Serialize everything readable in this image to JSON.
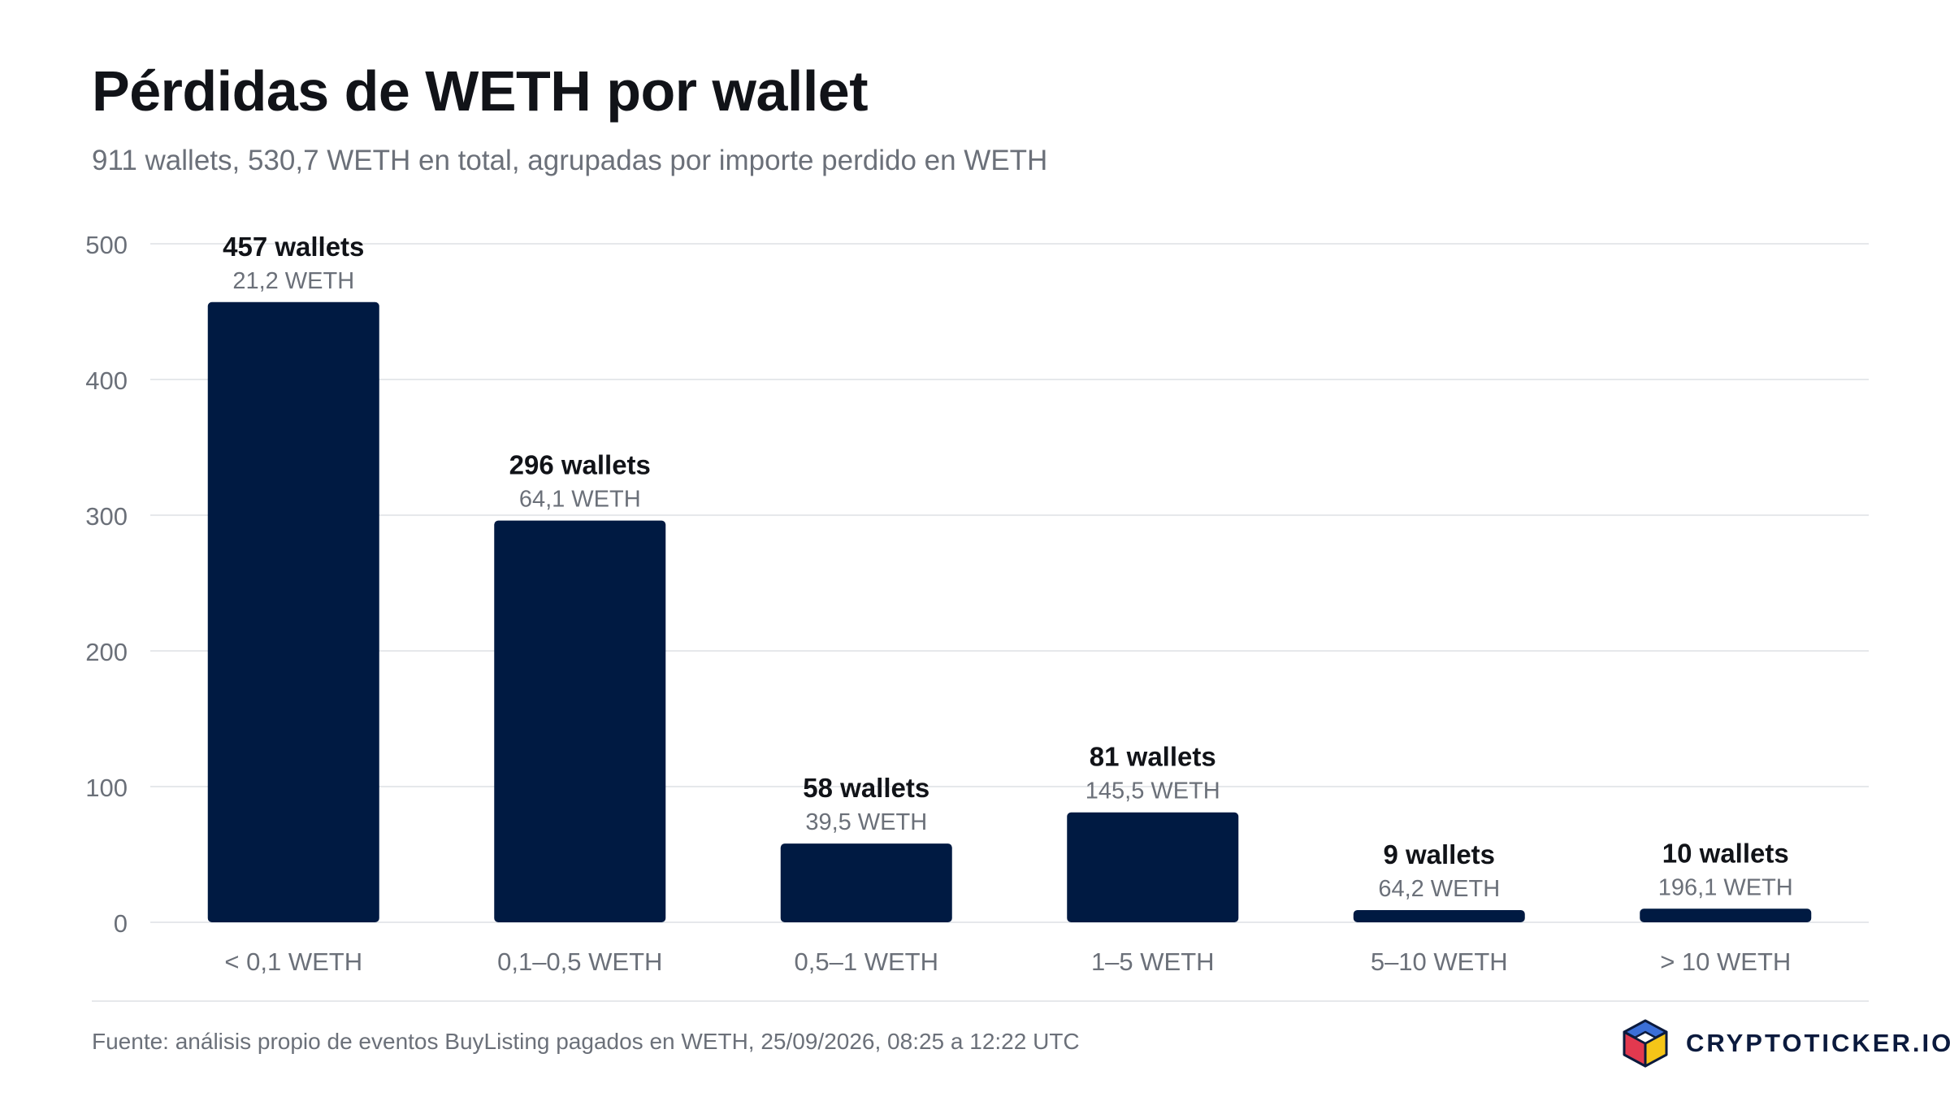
{
  "header": {
    "title": "Pérdidas de WETH por wallet",
    "subtitle": "911 wallets, 530,7 WETH en total, agrupadas por importe perdido en WETH"
  },
  "chart_data": {
    "type": "bar",
    "categories": [
      "< 0,1 WETH",
      "0,1–0,5 WETH",
      "0,5–1 WETH",
      "1–5 WETH",
      "5–10 WETH",
      "> 10 WETH"
    ],
    "values": [
      457,
      296,
      58,
      81,
      9,
      10
    ],
    "value_labels": [
      "457 wallets",
      "296 wallets",
      "58 wallets",
      "81 wallets",
      "9 wallets",
      "10 wallets"
    ],
    "sub_labels": [
      "21,2 WETH",
      "64,1 WETH",
      "39,5 WETH",
      "145,5 WETH",
      "64,2 WETH",
      "196,1 WETH"
    ],
    "ylim": [
      0,
      500
    ],
    "yticks": [
      0,
      100,
      200,
      300,
      400,
      500
    ],
    "grid": true,
    "bar_color": "#001a42"
  },
  "footer": {
    "source": "Fuente: análisis propio de eventos BuyListing pagados en WETH, 25/09/2026, 08:25 a 12:22 UTC",
    "brand": "CRYPTOTICKER.IO"
  },
  "colors": {
    "title": "#111318",
    "muted": "#6b7079",
    "grid": "#e6e8eb",
    "brand": "#0b1a3d"
  },
  "icons": {
    "brand_logo": "isometric-cube-icon"
  }
}
